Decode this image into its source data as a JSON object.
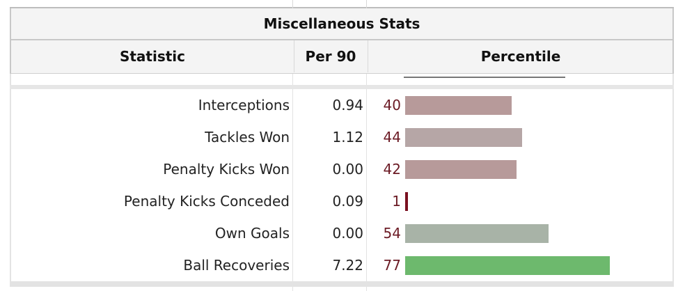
{
  "section_title": "Miscellaneous Stats",
  "columns": {
    "statistic": "Statistic",
    "per90": "Per 90",
    "percentile": "Percentile"
  },
  "colors": {
    "low": "#b79a9a",
    "mid_low": "#b6a6a6",
    "mid": "#a8b3a7",
    "high": "#6db96d",
    "marker": "#7a1020",
    "percentile_text": "#6b1a24"
  },
  "rows": [
    {
      "statistic": "Interceptions",
      "per90": "0.94",
      "percentile": "40",
      "percentile_value": 40,
      "bar_color": "#b79a9a"
    },
    {
      "statistic": "Tackles Won",
      "per90": "1.12",
      "percentile": "44",
      "percentile_value": 44,
      "bar_color": "#b6a6a6"
    },
    {
      "statistic": "Penalty Kicks Won",
      "per90": "0.00",
      "percentile": "42",
      "percentile_value": 42,
      "bar_color": "#b79a9a"
    },
    {
      "statistic": "Penalty Kicks Conceded",
      "per90": "0.09",
      "percentile": "1",
      "percentile_value": 1,
      "bar_color": "#7a1020"
    },
    {
      "statistic": "Own Goals",
      "per90": "0.00",
      "percentile": "54",
      "percentile_value": 54,
      "bar_color": "#a8b3a7"
    },
    {
      "statistic": "Ball Recoveries",
      "per90": "7.22",
      "percentile": "77",
      "percentile_value": 77,
      "bar_color": "#6db96d"
    }
  ]
}
